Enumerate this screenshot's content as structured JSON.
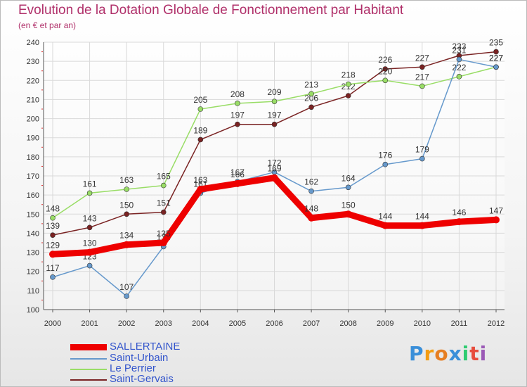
{
  "title": "Evolution de la Dotation Globale de Fonctionnement par Habitant",
  "subtitle": "(en € et par an)",
  "brand": {
    "name": "Proxiti",
    "letters": [
      {
        "ch": "P",
        "color": "#3a8fd9"
      },
      {
        "ch": "r",
        "color": "#f39c12"
      },
      {
        "ch": "o",
        "color": "#e67e22"
      },
      {
        "ch": "x",
        "color": "#3a8fd9"
      },
      {
        "ch": "i",
        "color": "#2ecc71"
      },
      {
        "ch": "t",
        "color": "#e74c3c"
      },
      {
        "ch": "i",
        "color": "#9b59b6"
      }
    ]
  },
  "chart_data": {
    "type": "line",
    "title": "Evolution de la Dotation Globale de Fonctionnement par Habitant",
    "subtitle": "(en € et par an)",
    "xlabel": "",
    "ylabel": "",
    "ylim": [
      100,
      240
    ],
    "yticks": [
      100,
      110,
      120,
      130,
      140,
      150,
      160,
      170,
      180,
      190,
      200,
      210,
      220,
      230,
      240
    ],
    "grid": true,
    "legend_position": "bottom-left",
    "categories": [
      "2000",
      "2001",
      "2002",
      "2003",
      "2004",
      "2005",
      "2006",
      "2007",
      "2008",
      "2009",
      "2010",
      "2011",
      "2012"
    ],
    "series": [
      {
        "name": "Saint-Gervais",
        "color": "#7a2323",
        "values": [
          139,
          143,
          150,
          151,
          189,
          197,
          197,
          206,
          212,
          226,
          227,
          233,
          235
        ]
      },
      {
        "name": "Le Perrier",
        "color": "#99dd66",
        "values": [
          148,
          161,
          163,
          165,
          205,
          208,
          209,
          213,
          218,
          220,
          217,
          222,
          227
        ]
      },
      {
        "name": "Saint-Urbain",
        "color": "#6699cc",
        "values": [
          117,
          123,
          107,
          133,
          161,
          167,
          172,
          162,
          164,
          176,
          179,
          231,
          227
        ]
      },
      {
        "name": "SALLERTAINE",
        "color": "#ee0000",
        "values": [
          129,
          130,
          134,
          135,
          163,
          166,
          169,
          148,
          150,
          144,
          144,
          146,
          147
        ]
      }
    ]
  },
  "legend": [
    {
      "name": "SALLERTAINE",
      "color": "#ee0000"
    },
    {
      "name": "Saint-Urbain",
      "color": "#6699cc"
    },
    {
      "name": "Le Perrier",
      "color": "#99dd66"
    },
    {
      "name": "Saint-Gervais",
      "color": "#7a2323"
    }
  ]
}
